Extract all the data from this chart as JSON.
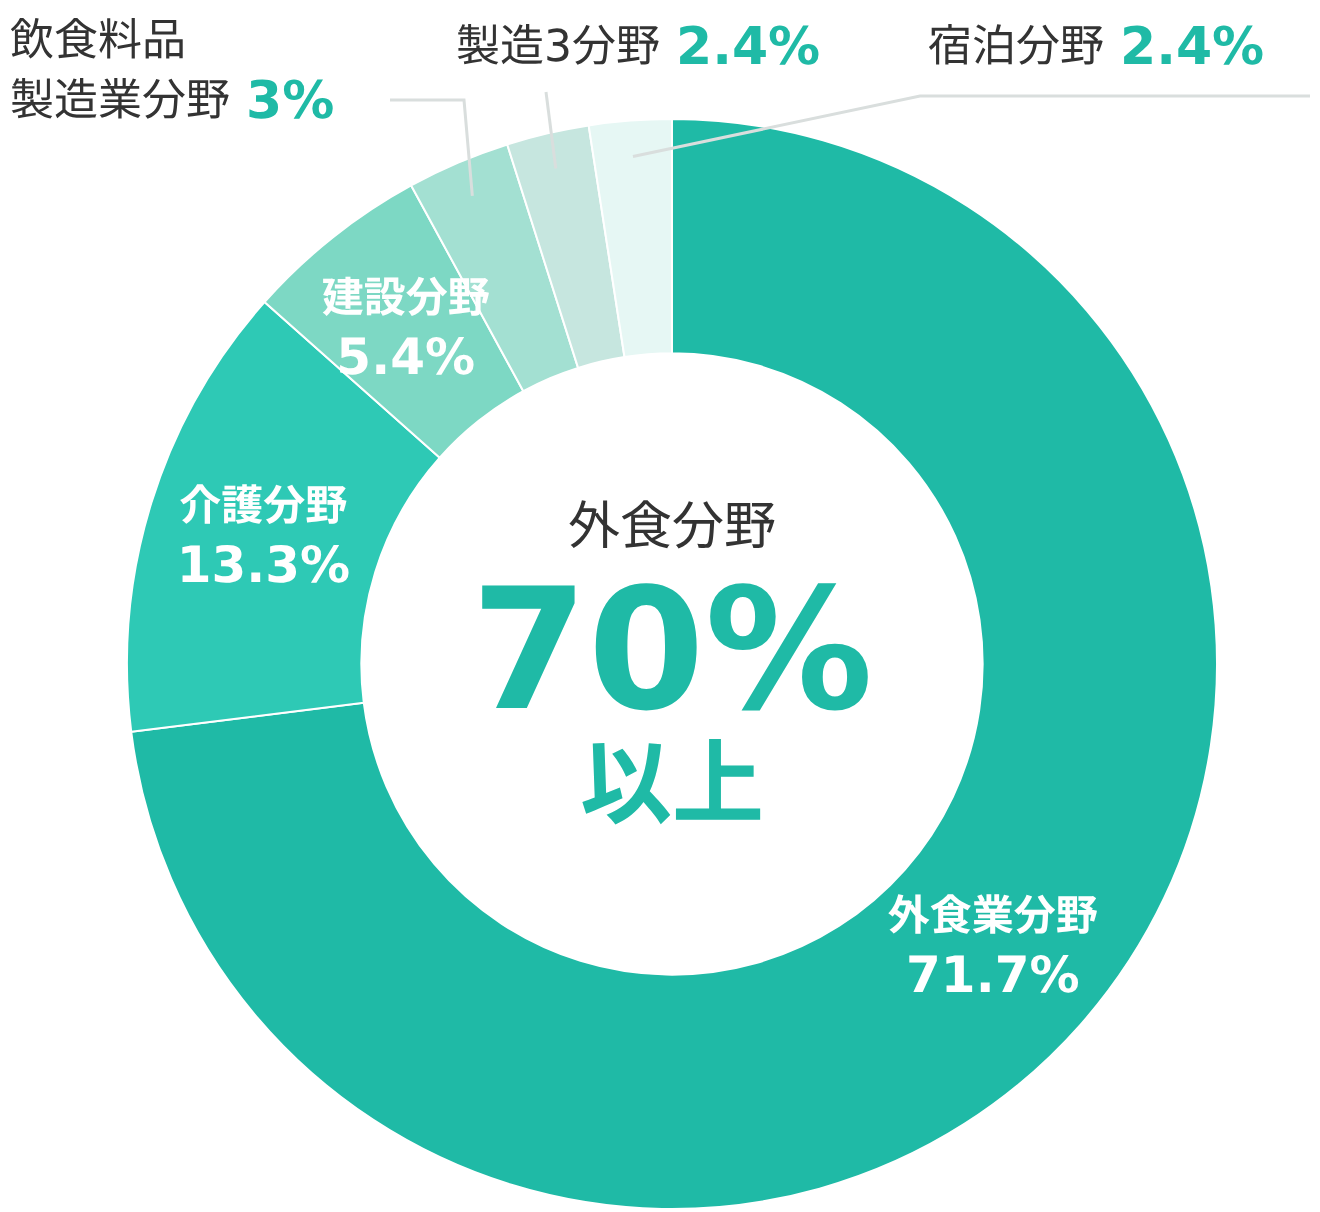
{
  "chart_data": {
    "type": "donut",
    "categories": [
      "外食業分野",
      "介護分野",
      "建設分野",
      "飲食料品製造業分野",
      "製造3分野",
      "宿泊分野"
    ],
    "values": [
      71.7,
      13.3,
      5.4,
      3,
      2.4,
      2.4
    ],
    "colors": [
      "#1fbaa6",
      "#2ec9b5",
      "#7dd8c4",
      "#a3e0d2",
      "#c6e6df",
      "#e6f7f4"
    ],
    "value_labels": [
      "71.7%",
      "13.3%",
      "5.4%",
      "3%",
      "2.4%",
      "2.4%"
    ],
    "annotations": [
      "外食分野",
      "70%",
      "以上"
    ],
    "legend": false
  }
}
